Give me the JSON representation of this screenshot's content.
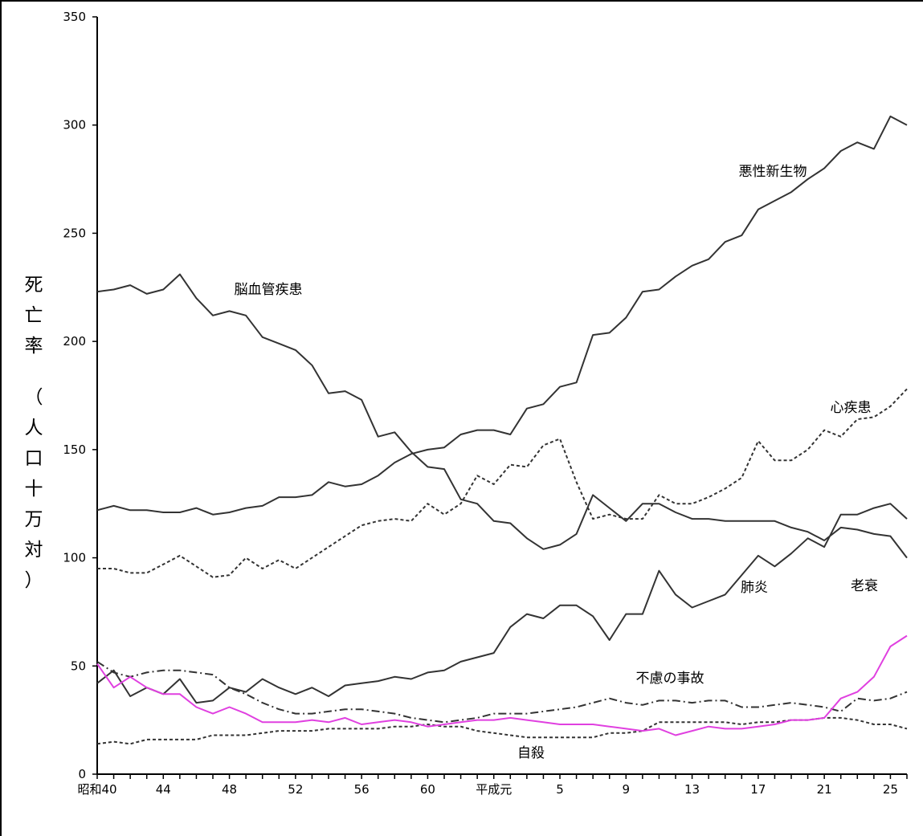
{
  "chart_data": {
    "type": "line",
    "ylabel_main": "死亡率",
    "ylabel_unit": "（人口十万対）",
    "ylim": [
      0,
      350
    ],
    "yticks": [
      0,
      50,
      100,
      150,
      200,
      250,
      300,
      350
    ],
    "x": [
      "昭和40",
      "41",
      "42",
      "43",
      "44",
      "45",
      "46",
      "47",
      "48",
      "49",
      "50",
      "51",
      "52",
      "53",
      "54",
      "55",
      "56",
      "57",
      "58",
      "59",
      "60",
      "61",
      "62",
      "63",
      "平成元",
      "2",
      "3",
      "4",
      "5",
      "6",
      "7",
      "8",
      "9",
      "10",
      "11",
      "12",
      "13",
      "14",
      "15",
      "16",
      "17",
      "18",
      "19",
      "20",
      "21",
      "22",
      "23",
      "24",
      "25",
      "26"
    ],
    "xtick_labels": [
      "昭和40",
      "44",
      "48",
      "52",
      "56",
      "60",
      "平成元",
      "5",
      "9",
      "13",
      "17",
      "21",
      "25"
    ],
    "grid": false,
    "series": [
      {
        "name": "悪性新生物",
        "color": "#333333",
        "dash": "solid",
        "values": [
          122,
          124,
          122,
          122,
          121,
          121,
          123,
          120,
          121,
          123,
          124,
          128,
          128,
          129,
          135,
          133,
          134,
          138,
          144,
          148,
          150,
          151,
          157,
          159,
          159,
          157,
          169,
          171,
          179,
          181,
          203,
          204,
          211,
          223,
          224,
          230,
          235,
          238,
          246,
          249,
          261,
          265,
          269,
          275,
          280,
          288,
          292,
          289,
          304,
          300
        ]
      },
      {
        "name": "心疾患",
        "color": "#333333",
        "dash": "4,3",
        "values": [
          95,
          95,
          93,
          93,
          97,
          101,
          96,
          91,
          92,
          100,
          95,
          99,
          95,
          100,
          105,
          110,
          115,
          117,
          118,
          117,
          125,
          120,
          125,
          138,
          134,
          143,
          142,
          152,
          155,
          135,
          118,
          120,
          118,
          118,
          129,
          125,
          125,
          128,
          132,
          137,
          154,
          145,
          145,
          150,
          159,
          156,
          164,
          165,
          170,
          178
        ]
      },
      {
        "name": "肺炎",
        "color": "#333333",
        "dash": "solid",
        "values": [
          42,
          48,
          36,
          40,
          37,
          44,
          33,
          34,
          40,
          38,
          44,
          40,
          37,
          40,
          36,
          41,
          42,
          43,
          45,
          44,
          47,
          48,
          52,
          54,
          56,
          68,
          74,
          72,
          78,
          78,
          73,
          62,
          74,
          74,
          94,
          83,
          77,
          80,
          83,
          92,
          101,
          96,
          102,
          109,
          105,
          120,
          120,
          123,
          125,
          118
        ]
      },
      {
        "name": "脳血管疾患",
        "color": "#333333",
        "dash": "solid",
        "values": [
          223,
          224,
          226,
          222,
          224,
          231,
          220,
          212,
          214,
          212,
          202,
          199,
          196,
          189,
          176,
          177,
          173,
          156,
          158,
          149,
          142,
          141,
          127,
          125,
          117,
          116,
          109,
          104,
          106,
          111,
          129,
          123,
          117,
          125,
          125,
          121,
          118,
          118,
          117,
          117,
          117,
          117,
          114,
          112,
          108,
          114,
          113,
          111,
          110,
          100
        ]
      },
      {
        "name": "不慮の事故",
        "color": "#333333",
        "dash": "10,4,2,4",
        "values": [
          52,
          47,
          45,
          47,
          48,
          48,
          47,
          46,
          40,
          37,
          33,
          30,
          28,
          28,
          29,
          30,
          30,
          29,
          28,
          26,
          25,
          24,
          25,
          26,
          28,
          28,
          28,
          29,
          30,
          31,
          33,
          35,
          33,
          32,
          34,
          34,
          33,
          34,
          34,
          31,
          31,
          32,
          33,
          32,
          31,
          29,
          35,
          34,
          35,
          38
        ]
      },
      {
        "name": "自殺",
        "color": "#333333",
        "dash": "4,3",
        "values": [
          14,
          15,
          14,
          16,
          16,
          16,
          16,
          18,
          18,
          18,
          19,
          20,
          20,
          20,
          21,
          21,
          21,
          21,
          22,
          22,
          23,
          22,
          22,
          20,
          19,
          18,
          17,
          17,
          17,
          17,
          17,
          19,
          19,
          20,
          24,
          24,
          24,
          24,
          24,
          23,
          24,
          24,
          25,
          25,
          26,
          26,
          25,
          23,
          23,
          21
        ]
      },
      {
        "name": "老衰",
        "color": "#e040e0",
        "dash": "solid",
        "values": [
          51,
          40,
          45,
          40,
          37,
          37,
          31,
          28,
          31,
          28,
          24,
          24,
          24,
          25,
          24,
          26,
          23,
          24,
          25,
          24,
          22,
          23,
          24,
          25,
          25,
          26,
          25,
          24,
          23,
          23,
          23,
          22,
          21,
          20,
          21,
          18,
          20,
          22,
          21,
          21,
          22,
          23,
          25,
          25,
          26,
          35,
          38,
          45,
          59,
          64
        ]
      }
    ],
    "annotations": [
      {
        "text": "悪性新生物",
        "series": "悪性新生物"
      },
      {
        "text": "脳血管疾患",
        "series": "脳血管疾患"
      },
      {
        "text": "心疾患",
        "series": "心疾患"
      },
      {
        "text": "肺炎",
        "series": "肺炎"
      },
      {
        "text": "老衰",
        "series": "老衰"
      },
      {
        "text": "不慮の事故",
        "series": "不慮の事故"
      },
      {
        "text": "自殺",
        "series": "自殺"
      }
    ]
  }
}
